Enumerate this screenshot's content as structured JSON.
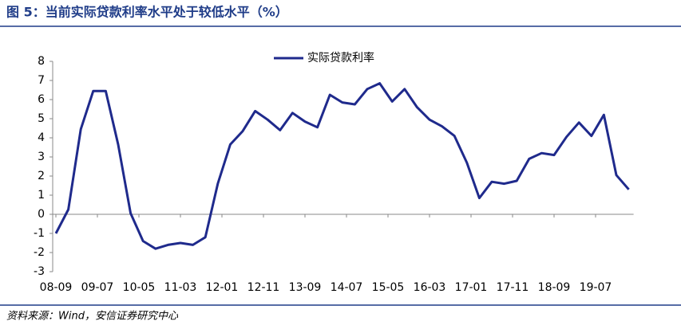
{
  "chart_data": {
    "type": "line",
    "title": "图 5：当前实际贷款利率水平处于较低水平（%）",
    "source": "资料来源：Wind，安信证券研究中心",
    "xtick_labels": [
      "08-09",
      "09-07",
      "10-05",
      "11-03",
      "12-01",
      "12-11",
      "13-09",
      "14-07",
      "15-05",
      "16-03",
      "17-01",
      "17-11",
      "18-09",
      "19-07"
    ],
    "series": [
      {
        "name": "实际贷款利率",
        "color": "#1f2a8c",
        "values": [
          -1.0,
          0.25,
          4.45,
          6.45,
          6.45,
          3.65,
          0.05,
          -1.4,
          -1.8,
          -1.6,
          -1.5,
          -1.6,
          -1.2,
          1.6,
          3.65,
          4.35,
          5.4,
          4.95,
          4.4,
          5.3,
          4.85,
          4.55,
          6.25,
          5.85,
          5.75,
          6.55,
          6.85,
          5.9,
          6.55,
          5.6,
          4.95,
          4.6,
          4.1,
          2.7,
          0.85,
          1.7,
          1.6,
          1.75,
          2.9,
          3.2,
          3.1,
          4.05,
          4.8,
          4.1,
          5.2,
          2.05,
          1.3
        ]
      }
    ],
    "ylim": [
      -3,
      8
    ],
    "yticks": [
      -3,
      -2,
      -1,
      0,
      1,
      2,
      3,
      4,
      5,
      6,
      7,
      8
    ],
    "legend": "top"
  }
}
